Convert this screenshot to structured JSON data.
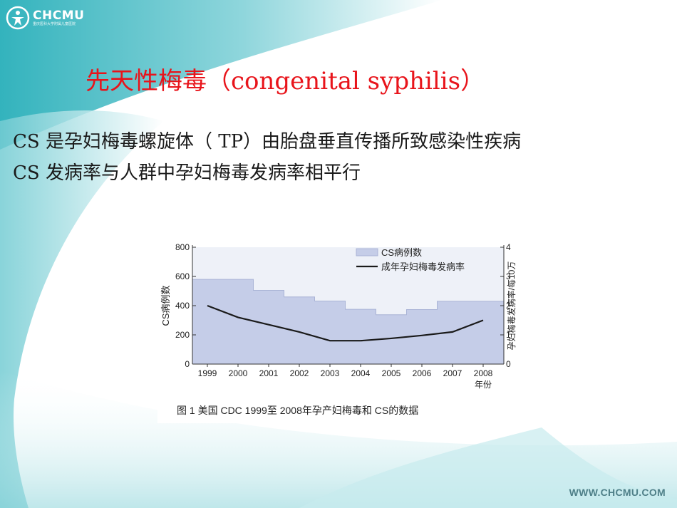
{
  "logo": {
    "name": "CHCMU",
    "subtitle": "重庆医科大学附属儿童医院"
  },
  "title": "先天性梅毒（congenital syphilis）",
  "bullets": [
    "CS 是孕妇梅毒螺旋体（ TP）由胎盘垂直传播所致感染性疾病",
    "CS 发病率与人群中孕妇梅毒发病率相平行"
  ],
  "figure": {
    "caption": "图 1  美国 CDC 1999至 2008年孕产妇梅毒和 CS的数据",
    "chart_data": {
      "type": "bar",
      "categories": [
        "1999",
        "2000",
        "2001",
        "2002",
        "2003",
        "2004",
        "2005",
        "2006",
        "2007",
        "2008"
      ],
      "xlabel": "年份",
      "ylabel": "CS病例数",
      "ylabel_right": "孕妇梅毒发病率/每10万",
      "ylim": [
        0,
        800
      ],
      "ylim_right": [
        0,
        4
      ],
      "yticks": [
        "0",
        "200",
        "400",
        "600",
        "800"
      ],
      "yticks_right": [
        "0",
        "1",
        "2",
        "3",
        "4"
      ],
      "series": [
        {
          "name": "CS病例数",
          "type": "bar",
          "axis": "left",
          "color": "#c5cde8",
          "values": [
            580,
            580,
            505,
            460,
            432,
            375,
            338,
            373,
            430,
            430
          ]
        },
        {
          "name": "成年孕妇梅毒发病率",
          "type": "line",
          "axis": "right",
          "color": "#1a1a1a",
          "values": [
            2.0,
            1.6,
            1.35,
            1.1,
            0.8,
            0.8,
            0.88,
            0.98,
            1.1,
            1.5
          ]
        }
      ]
    }
  },
  "footer": {
    "url": "WWW.CHCMU.COM"
  },
  "colors": {
    "title": "#e8141b",
    "teal": "#3fb6bf",
    "bar": "#c5cde8"
  }
}
